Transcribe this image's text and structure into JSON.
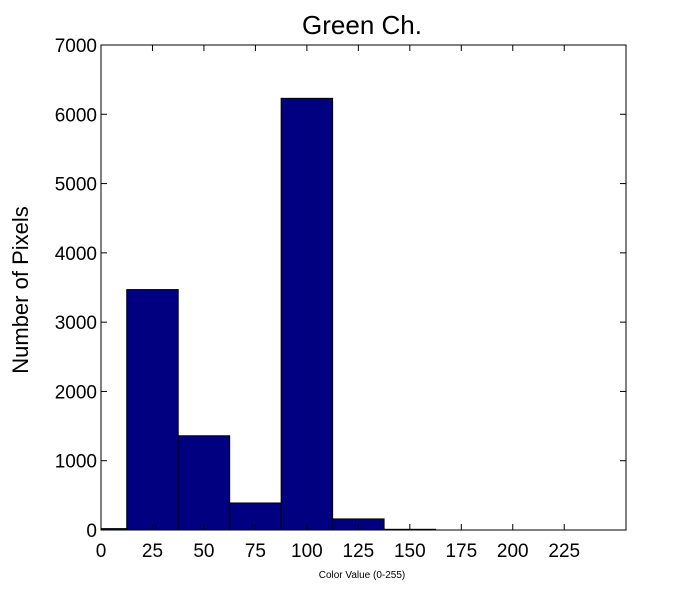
{
  "chart_data": {
    "type": "bar",
    "title": "Green Ch.",
    "xlabel": "Color Value (0-255)",
    "ylabel": "Number of Pixels",
    "bin_edges": [
      0,
      12.5,
      37.5,
      62.5,
      87.5,
      112.5,
      137.5,
      162.5,
      187.5,
      212.5,
      237.5,
      255
    ],
    "values": [
      20,
      3470,
      1360,
      390,
      6230,
      160,
      10,
      0,
      0,
      0,
      0
    ],
    "xlim": [
      0,
      255
    ],
    "ylim": [
      0,
      7000
    ],
    "xticks": [
      0,
      25,
      50,
      75,
      100,
      125,
      150,
      175,
      200,
      225
    ],
    "yticks": [
      0,
      1000,
      2000,
      3000,
      4000,
      5000,
      6000,
      7000
    ],
    "bar_color": "#000080",
    "grid": false,
    "legend": "none"
  }
}
